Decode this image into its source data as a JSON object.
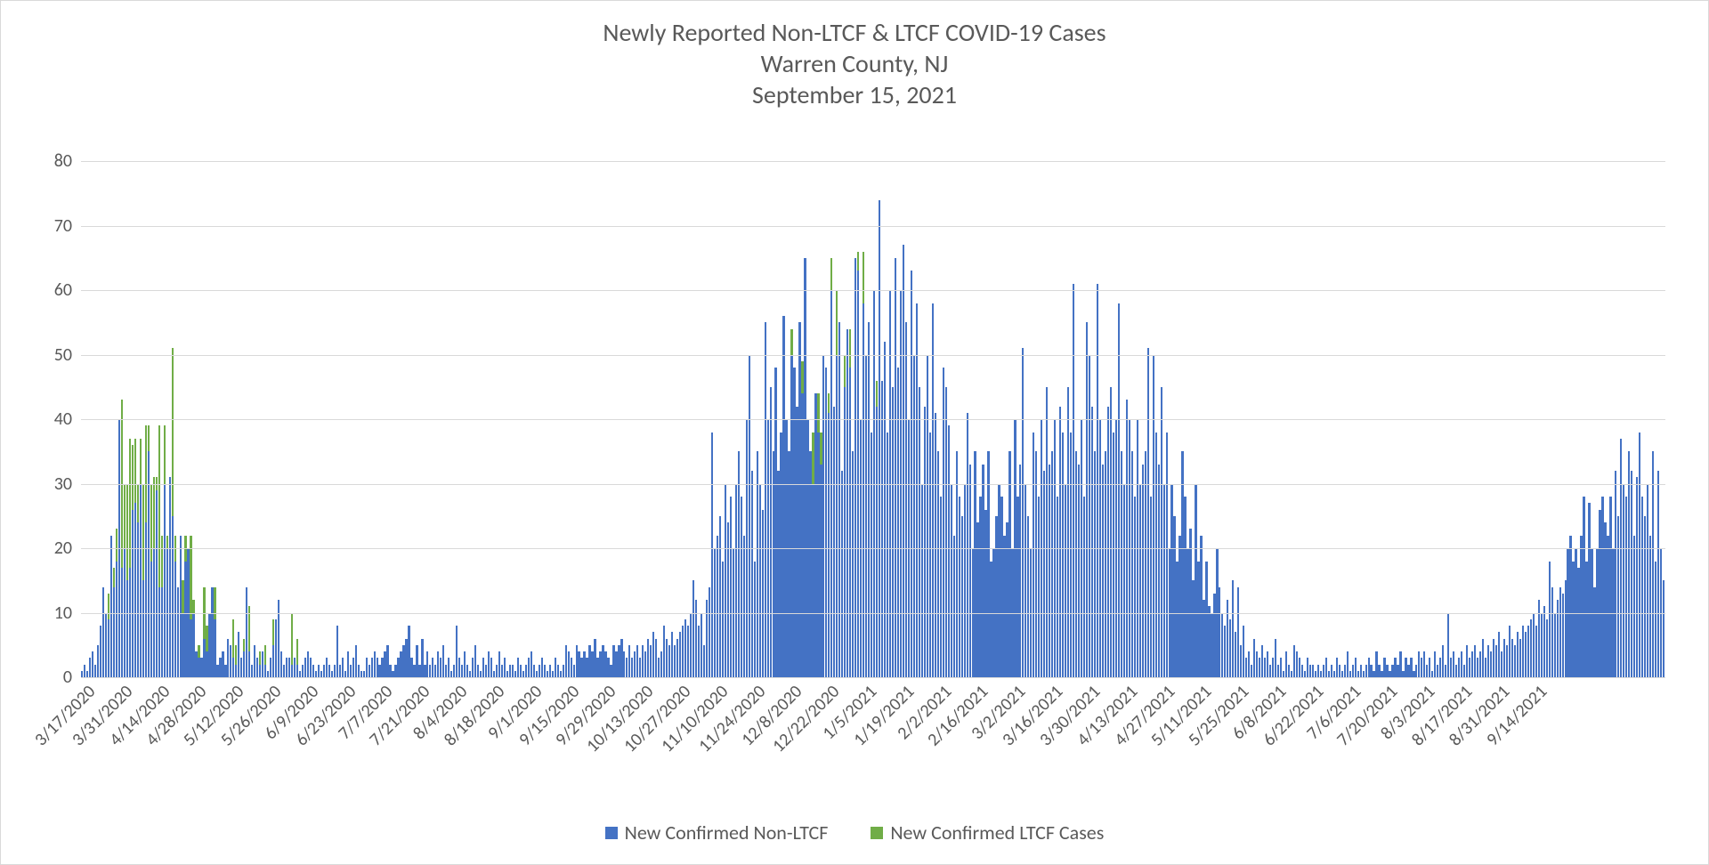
{
  "chart": {
    "type": "stacked-bar",
    "title_line1": "Newly Reported Non-LTCF & LTCF COVID-19 Cases",
    "title_line2": "Warren County, NJ",
    "title_line3": "September 15, 2021",
    "title_fontsize": 28,
    "title_color": "#595959",
    "background_color": "#ffffff",
    "border_color": "#d9d9d9",
    "grid_color": "#d9d9d9",
    "axis_label_color": "#595959",
    "axis_fontsize": 20,
    "ylim": [
      0,
      80
    ],
    "ytick_step": 10,
    "series": [
      {
        "key": "non",
        "label": "New Confirmed Non-LTCF",
        "color": "#4472c4"
      },
      {
        "key": "ltcf",
        "label": "New Confirmed LTCF Cases",
        "color": "#70ad47"
      }
    ],
    "legend_fontsize": 22,
    "x_start_date": "2020-03-17",
    "x_tick_dates": [
      "3/17/2020",
      "3/31/2020",
      "4/14/2020",
      "4/28/2020",
      "5/12/2020",
      "5/26/2020",
      "6/9/2020",
      "6/23/2020",
      "7/7/2020",
      "7/21/2020",
      "8/4/2020",
      "8/18/2020",
      "9/1/2020",
      "9/15/2020",
      "9/29/2020",
      "10/13/2020",
      "10/27/2020",
      "11/10/2020",
      "11/24/2020",
      "12/8/2020",
      "12/22/2020",
      "1/5/2021",
      "1/19/2021",
      "2/2/2021",
      "2/16/2021",
      "3/2/2021",
      "3/16/2021",
      "3/30/2021",
      "4/13/2021",
      "4/27/2021",
      "5/11/2021",
      "5/25/2021",
      "6/8/2021",
      "6/22/2021",
      "7/6/2021",
      "7/20/2021",
      "8/3/2021",
      "8/17/2021",
      "8/31/2021",
      "9/14/2021"
    ],
    "x_tick_interval_days": 14,
    "non": [
      1,
      2,
      1,
      3,
      4,
      2,
      5,
      8,
      14,
      10,
      9,
      22,
      14,
      18,
      40,
      17,
      20,
      15,
      17,
      26,
      27,
      24,
      30,
      15,
      24,
      35,
      18,
      20,
      29,
      14,
      14,
      30,
      20,
      31,
      25,
      18,
      14,
      22,
      10,
      18,
      20,
      9,
      10,
      4,
      3,
      3,
      6,
      4,
      10,
      14,
      9,
      2,
      3,
      4,
      2,
      6,
      5,
      3,
      2,
      7,
      3,
      4,
      14,
      4,
      2,
      5,
      3,
      2,
      4,
      2,
      1,
      3,
      5,
      9,
      12,
      4,
      2,
      3,
      3,
      2,
      3,
      2,
      1,
      2,
      3,
      4,
      3,
      2,
      1,
      2,
      1,
      2,
      3,
      2,
      1,
      2,
      8,
      2,
      3,
      1,
      4,
      2,
      3,
      5,
      2,
      1,
      1,
      3,
      2,
      3,
      4,
      3,
      2,
      3,
      4,
      5,
      2,
      1,
      2,
      3,
      4,
      5,
      6,
      8,
      3,
      2,
      5,
      2,
      6,
      2,
      4,
      2,
      3,
      2,
      4,
      3,
      5,
      2,
      3,
      1,
      2,
      8,
      3,
      2,
      4,
      2,
      1,
      3,
      5,
      2,
      1,
      3,
      2,
      4,
      3,
      1,
      2,
      4,
      2,
      3,
      1,
      2,
      2,
      1,
      3,
      2,
      1,
      2,
      3,
      4,
      2,
      1,
      2,
      3,
      2,
      1,
      2,
      1,
      3,
      2,
      1,
      2,
      5,
      4,
      3,
      2,
      5,
      4,
      3,
      4,
      3,
      5,
      4,
      6,
      3,
      4,
      5,
      4,
      3,
      2,
      5,
      4,
      5,
      6,
      4,
      3,
      5,
      3,
      4,
      5,
      3,
      5,
      4,
      6,
      5,
      7,
      6,
      3,
      4,
      8,
      6,
      5,
      7,
      5,
      6,
      7,
      8,
      9,
      8,
      10,
      15,
      12,
      8,
      10,
      5,
      12,
      14,
      38,
      20,
      22,
      25,
      18,
      30,
      24,
      28,
      20,
      30,
      35,
      28,
      22,
      40,
      50,
      32,
      18,
      35,
      30,
      26,
      55,
      40,
      45,
      35,
      48,
      32,
      38,
      56,
      40,
      35,
      50,
      48,
      42,
      55,
      44,
      65,
      40,
      35,
      30,
      44,
      38,
      33,
      50,
      48,
      41,
      60,
      42,
      50,
      55,
      32,
      45,
      54,
      48,
      35,
      65,
      63,
      40,
      58,
      50,
      55,
      38,
      60,
      42,
      74,
      46,
      52,
      38,
      60,
      45,
      65,
      48,
      60,
      67,
      55,
      40,
      63,
      50,
      58,
      45,
      30,
      42,
      50,
      38,
      58,
      41,
      35,
      28,
      48,
      45,
      39,
      30,
      22,
      35,
      28,
      25,
      30,
      41,
      33,
      20,
      35,
      24,
      28,
      33,
      26,
      35,
      18,
      20,
      25,
      30,
      28,
      22,
      24,
      35,
      20,
      40,
      28,
      33,
      51,
      30,
      25,
      20,
      38,
      35,
      28,
      40,
      32,
      45,
      33,
      35,
      40,
      28,
      42,
      38,
      30,
      45,
      38,
      61,
      35,
      33,
      40,
      28,
      55,
      50,
      42,
      35,
      61,
      40,
      33,
      35,
      42,
      45,
      38,
      40,
      58,
      35,
      30,
      43,
      40,
      35,
      28,
      40,
      30,
      33,
      35,
      51,
      28,
      50,
      38,
      33,
      45,
      30,
      38,
      20,
      30,
      25,
      18,
      22,
      35,
      28,
      20,
      23,
      15,
      30,
      18,
      22,
      12,
      18,
      11,
      10,
      13,
      20,
      14,
      10,
      8,
      12,
      9,
      15,
      7,
      14,
      5,
      8,
      3,
      4,
      2,
      6,
      4,
      3,
      5,
      3,
      4,
      2,
      3,
      6,
      2,
      3,
      1,
      4,
      2,
      1,
      5,
      4,
      3,
      2,
      1,
      3,
      2,
      2,
      1,
      2,
      1,
      2,
      3,
      1,
      2,
      1,
      3,
      2,
      1,
      2,
      4,
      1,
      2,
      3,
      1,
      2,
      1,
      2,
      3,
      2,
      1,
      4,
      2,
      1,
      3,
      2,
      1,
      2,
      3,
      2,
      4,
      1,
      3,
      2,
      3,
      1,
      2,
      4,
      3,
      4,
      2,
      3,
      1,
      4,
      2,
      3,
      5,
      2,
      10,
      3,
      4,
      2,
      3,
      4,
      2,
      5,
      3,
      4,
      5,
      3,
      4,
      6,
      3,
      5,
      4,
      6,
      5,
      7,
      4,
      6,
      5,
      8,
      6,
      5,
      7,
      6,
      8,
      7,
      8,
      9,
      10,
      8,
      12,
      10,
      11,
      9,
      18,
      14,
      10,
      12,
      14,
      13,
      15,
      20,
      22,
      18,
      20,
      17,
      22,
      28,
      18,
      27,
      20,
      14,
      20,
      26,
      28,
      24,
      22,
      28,
      20,
      32,
      25,
      37,
      30,
      28,
      35,
      32,
      22,
      31,
      38,
      28,
      25,
      30,
      22,
      35,
      18,
      32,
      20,
      15
    ],
    "ltcf": [
      0,
      0,
      0,
      0,
      0,
      0,
      0,
      0,
      0,
      0,
      4,
      0,
      3,
      5,
      0,
      26,
      10,
      15,
      20,
      10,
      10,
      6,
      7,
      15,
      15,
      4,
      12,
      11,
      2,
      25,
      8,
      9,
      2,
      0,
      26,
      4,
      0,
      0,
      5,
      4,
      0,
      13,
      2,
      0,
      2,
      0,
      8,
      4,
      0,
      0,
      5,
      0,
      0,
      0,
      0,
      0,
      0,
      6,
      3,
      0,
      0,
      2,
      0,
      7,
      0,
      0,
      0,
      2,
      0,
      3,
      0,
      0,
      4,
      0,
      0,
      0,
      0,
      0,
      0,
      8,
      0,
      4,
      0,
      0,
      0,
      0,
      0,
      0,
      0,
      0,
      0,
      0,
      0,
      0,
      0,
      0,
      0,
      0,
      0,
      0,
      0,
      0,
      0,
      0,
      0,
      0,
      0,
      0,
      0,
      0,
      0,
      0,
      0,
      0,
      0,
      0,
      0,
      0,
      0,
      0,
      0,
      0,
      0,
      0,
      0,
      0,
      0,
      0,
      0,
      0,
      0,
      0,
      0,
      0,
      0,
      0,
      0,
      0,
      0,
      0,
      0,
      0,
      0,
      0,
      0,
      0,
      0,
      0,
      0,
      0,
      0,
      0,
      0,
      0,
      0,
      0,
      0,
      0,
      0,
      0,
      0,
      0,
      0,
      0,
      0,
      0,
      0,
      0,
      0,
      0,
      0,
      0,
      0,
      0,
      0,
      0,
      0,
      0,
      0,
      0,
      0,
      0,
      0,
      0,
      0,
      0,
      0,
      0,
      0,
      0,
      0,
      0,
      0,
      0,
      0,
      0,
      0,
      0,
      0,
      0,
      0,
      0,
      0,
      0,
      0,
      0,
      0,
      0,
      0,
      0,
      0,
      0,
      0,
      0,
      0,
      0,
      0,
      0,
      0,
      0,
      0,
      0,
      0,
      0,
      0,
      0,
      0,
      0,
      0,
      0,
      0,
      0,
      0,
      0,
      0,
      0,
      0,
      0,
      0,
      0,
      0,
      0,
      0,
      0,
      0,
      0,
      0,
      0,
      0,
      0,
      0,
      0,
      0,
      0,
      0,
      0,
      0,
      0,
      0,
      0,
      0,
      0,
      0,
      0,
      0,
      0,
      0,
      4,
      0,
      0,
      0,
      5,
      0,
      0,
      0,
      8,
      0,
      6,
      5,
      0,
      0,
      3,
      5,
      0,
      10,
      0,
      0,
      5,
      0,
      6,
      0,
      0,
      3,
      0,
      8,
      0,
      0,
      0,
      0,
      4,
      0,
      0,
      0,
      0,
      0,
      0,
      0,
      0,
      0,
      0,
      0,
      0,
      0,
      0,
      0,
      0,
      0,
      0,
      0,
      0,
      0,
      0,
      0,
      0,
      0,
      0,
      0,
      0,
      0,
      0,
      0,
      0,
      0,
      0,
      0,
      0,
      0,
      0,
      0,
      0,
      0,
      0,
      0,
      0,
      0,
      0,
      0,
      0,
      0,
      0,
      0,
      0,
      0,
      0,
      0,
      0,
      0,
      0,
      0,
      0,
      0,
      0,
      0,
      0,
      0,
      0,
      0,
      0,
      0,
      0,
      0,
      0,
      0,
      0,
      0,
      0,
      0,
      0,
      0,
      0,
      0,
      0,
      0,
      0,
      0,
      0,
      0,
      0,
      0,
      0,
      0,
      0,
      0,
      0,
      0,
      0,
      0,
      0,
      0,
      0,
      0,
      0,
      0,
      0,
      0,
      0,
      0,
      0,
      0,
      0,
      0,
      0,
      0,
      0,
      0,
      0,
      0,
      0,
      0,
      0,
      0,
      0,
      0,
      0,
      0,
      0,
      0,
      0,
      0,
      0,
      0,
      0,
      0,
      0,
      0,
      0,
      0,
      0,
      0,
      0,
      0,
      0,
      0,
      0,
      0,
      0,
      0,
      0,
      0,
      0,
      0,
      0,
      0,
      0,
      0,
      0,
      0,
      0,
      0,
      0,
      0,
      0,
      0,
      0,
      0,
      0,
      0,
      0,
      0,
      0,
      0,
      0,
      0,
      0,
      0,
      0,
      0,
      0,
      0,
      0,
      0,
      0,
      0,
      0,
      0,
      0,
      0,
      0,
      0,
      0,
      0,
      0,
      0,
      0,
      0,
      0,
      0,
      0,
      0,
      0,
      0,
      0,
      0,
      0,
      0,
      0,
      0,
      0,
      0,
      0,
      0,
      0,
      0,
      0,
      0,
      0,
      0,
      0,
      0,
      0,
      0,
      0,
      0,
      0,
      0,
      0,
      0,
      0,
      0,
      0,
      0,
      0,
      0,
      0,
      0,
      0,
      0,
      0,
      0,
      0,
      0,
      0,
      0,
      0,
      0,
      0,
      0,
      0,
      0,
      0,
      0,
      0,
      0,
      0,
      0,
      0,
      0,
      0,
      0,
      0,
      0,
      0,
      0,
      0,
      0,
      0,
      0,
      0,
      0,
      0,
      0,
      0,
      0,
      0,
      0,
      0,
      0,
      0,
      0,
      0,
      0,
      0,
      0,
      0,
      0,
      0,
      0,
      0,
      0,
      0,
      0,
      0,
      0,
      0,
      0,
      0
    ]
  }
}
